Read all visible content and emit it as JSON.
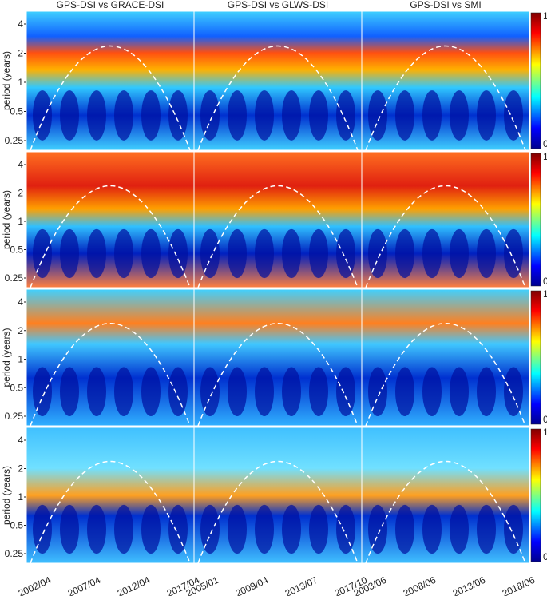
{
  "columns": [
    {
      "title": "GPS-DSI vs GRACE-DSI",
      "x_labels": [
        "2002/04",
        "2007/04",
        "2012/04",
        "2017/04"
      ]
    },
    {
      "title": "GPS-DSI vs GLWS-DSI",
      "x_labels": [
        "2005/01",
        "2009/04",
        "2013/07",
        "2017/10"
      ]
    },
    {
      "title": "GPS-DSI vs SMI",
      "x_labels": [
        "2003/06",
        "2008/06",
        "2013/06",
        "2018/06"
      ]
    }
  ],
  "y_axis_label": "period (years)",
  "y_ticks": [
    "4",
    "2",
    "1",
    "0.5",
    "0.25"
  ],
  "colorbar_ticks": [
    "1",
    "0"
  ]
}
